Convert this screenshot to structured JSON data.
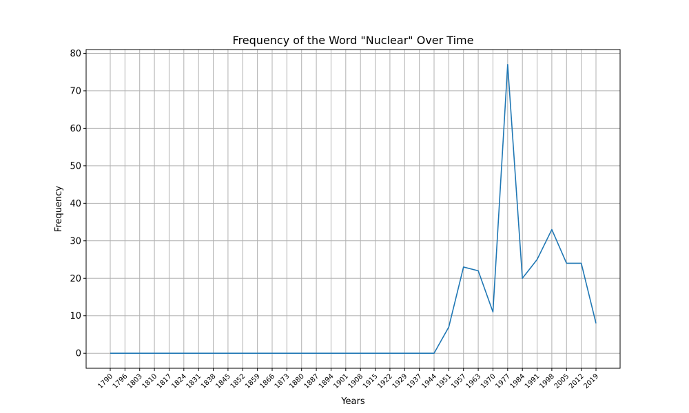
{
  "chart_data": {
    "type": "line",
    "title": "Frequency of the Word \"Nuclear\" Over Time",
    "xlabel": "Years",
    "ylabel": "Frequency",
    "ylim": [
      -4,
      81
    ],
    "yticks": [
      0,
      10,
      20,
      30,
      40,
      50,
      60,
      70,
      80
    ],
    "grid": true,
    "categories": [
      "1790",
      "1796",
      "1803",
      "1810",
      "1817",
      "1824",
      "1831",
      "1838",
      "1845",
      "1852",
      "1859",
      "1866",
      "1873",
      "1880",
      "1887",
      "1894",
      "1901",
      "1908",
      "1915",
      "1922",
      "1929",
      "1937",
      "1944",
      "1951",
      "1957",
      "1963",
      "1970",
      "1977",
      "1984",
      "1991",
      "1998",
      "2005",
      "2012",
      "2019"
    ],
    "series": [
      {
        "color": "#1f77b4",
        "values": [
          0,
          0,
          0,
          0,
          0,
          0,
          0,
          0,
          0,
          0,
          0,
          0,
          0,
          0,
          0,
          0,
          0,
          0,
          0,
          0,
          0,
          0,
          0,
          7,
          23,
          22,
          11,
          77,
          20,
          25,
          33,
          24,
          24,
          8
        ]
      }
    ]
  }
}
